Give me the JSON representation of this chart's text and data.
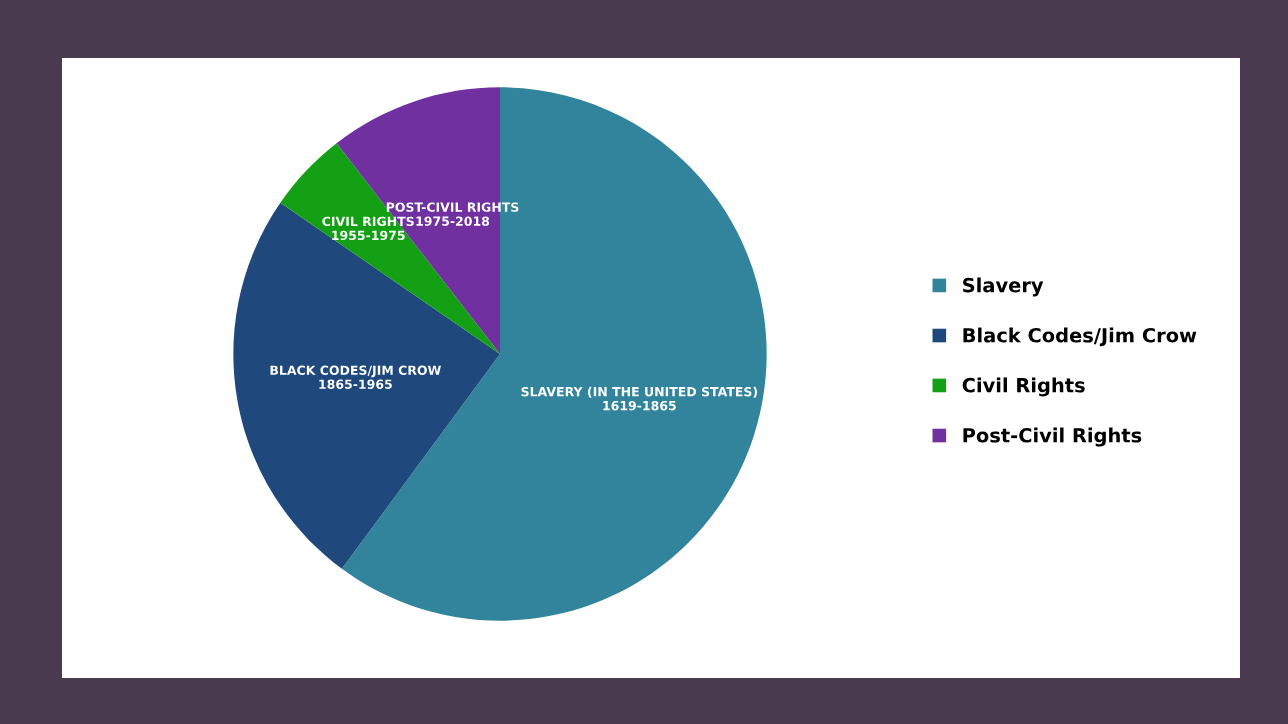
{
  "chart_data": {
    "type": "pie",
    "categories": [
      "Slavery",
      "Black Codes/Jim Crow",
      "Civil Rights",
      "Post-Civil Rights"
    ],
    "values": [
      60.1,
      24.5,
      4.9,
      10.5
    ],
    "colors": [
      "#31849b",
      "#1f497d",
      "#13a014",
      "#7030a0"
    ],
    "annotations": [
      "SLAVERY (IN THE UNITED STATES)\n1619-1865",
      "BLACK CODES/JIM CROW\n1865-1965",
      "CIVIL RIGHTS\n1955-1975",
      "POST-CIVIL RIGHTS\n1975-2018"
    ],
    "legend": "right"
  }
}
